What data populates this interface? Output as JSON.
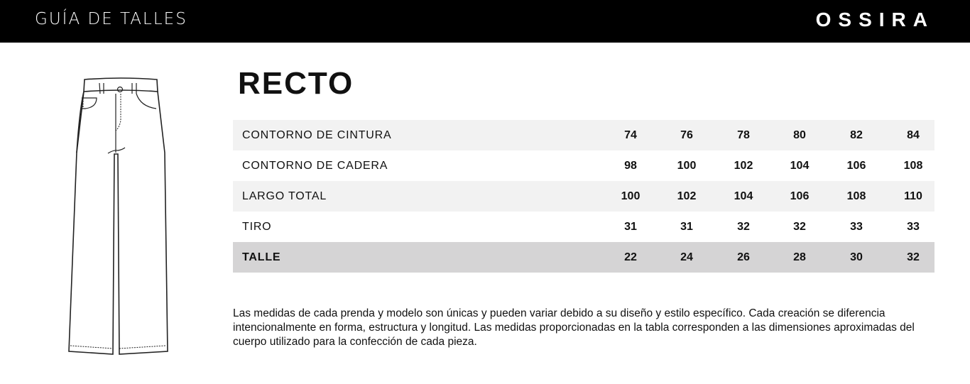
{
  "header": {
    "title": "GUÍA DE TALLES",
    "brand": "OSSIRA"
  },
  "illustration": {
    "icon": "straight-jeans-drawing"
  },
  "model": "RECTO",
  "table": {
    "rows": [
      {
        "label": "CONTORNO DE CINTURA",
        "values": [
          "74",
          "76",
          "78",
          "80",
          "82",
          "84"
        ]
      },
      {
        "label": "CONTORNO DE CADERA",
        "values": [
          "98",
          "100",
          "102",
          "104",
          "106",
          "108"
        ]
      },
      {
        "label": "LARGO TOTAL",
        "values": [
          "100",
          "102",
          "104",
          "106",
          "108",
          "110"
        ]
      },
      {
        "label": "TIRO",
        "values": [
          "31",
          "31",
          "32",
          "32",
          "33",
          "33"
        ]
      },
      {
        "label": "TALLE",
        "values": [
          "22",
          "24",
          "26",
          "28",
          "30",
          "32"
        ]
      }
    ]
  },
  "note": "Las medidas de cada prenda y modelo son únicas y pueden variar debido a su diseño y estilo específico. Cada creación se diferencia intencionalmente en forma, estructura y longitud. Las medidas proporcionadas en la tabla corresponden a las dimensiones aproximadas del cuerpo utilizado para la confección de cada pieza."
}
